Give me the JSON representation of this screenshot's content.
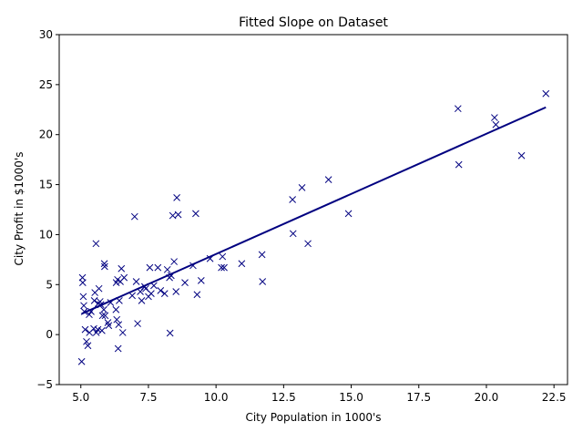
{
  "chart_data": {
    "type": "scatter",
    "title": "Fitted Slope on Dataset",
    "xlabel": "City Population in 1000's",
    "ylabel": "City Profit in $1000's",
    "xlim": [
      4.2,
      23.0
    ],
    "ylim": [
      -5,
      30
    ],
    "xticks": [
      "5.0",
      "7.5",
      "10.0",
      "12.5",
      "15.0",
      "17.5",
      "20.0",
      "22.5"
    ],
    "xtick_values": [
      5.0,
      7.5,
      10.0,
      12.5,
      15.0,
      17.5,
      20.0,
      22.5
    ],
    "yticks": [
      "−5",
      "0",
      "5",
      "10",
      "15",
      "20",
      "25",
      "30"
    ],
    "ytick_values": [
      -5,
      0,
      5,
      10,
      15,
      20,
      25,
      30
    ],
    "grid": false,
    "legend": "none",
    "colors": {
      "points": "#000080",
      "fit_line": "#000080"
    },
    "series": [
      {
        "kind": "points",
        "marker": "x",
        "points": [
          [
            5.03,
            -2.7
          ],
          [
            5.06,
            5.7
          ],
          [
            5.07,
            5.2
          ],
          [
            5.09,
            3.8
          ],
          [
            5.11,
            2.9
          ],
          [
            5.13,
            2.3
          ],
          [
            5.16,
            0.5
          ],
          [
            5.21,
            -0.7
          ],
          [
            5.26,
            -1.1
          ],
          [
            5.31,
            2.0
          ],
          [
            5.32,
            0.2
          ],
          [
            5.38,
            2.3
          ],
          [
            5.48,
            0.6
          ],
          [
            5.5,
            3.4
          ],
          [
            5.52,
            4.2
          ],
          [
            5.56,
            9.1
          ],
          [
            5.57,
            0.2
          ],
          [
            5.63,
            0.5
          ],
          [
            5.64,
            3.1
          ],
          [
            5.67,
            4.6
          ],
          [
            5.71,
            3.3
          ],
          [
            5.74,
            3.0
          ],
          [
            5.78,
            0.4
          ],
          [
            5.8,
            1.9
          ],
          [
            5.85,
            2.5
          ],
          [
            5.87,
            7.1
          ],
          [
            5.88,
            6.8
          ],
          [
            5.9,
            1.9
          ],
          [
            6.0,
            1.2
          ],
          [
            6.03,
            0.9
          ],
          [
            6.1,
            3.2
          ],
          [
            6.3,
            2.5
          ],
          [
            6.31,
            5.2
          ],
          [
            6.33,
            1.5
          ],
          [
            6.36,
            5.5
          ],
          [
            6.38,
            -1.4
          ],
          [
            6.4,
            1.0
          ],
          [
            6.42,
            3.4
          ],
          [
            6.46,
            5.3
          ],
          [
            6.5,
            6.6
          ],
          [
            6.55,
            0.2
          ],
          [
            6.6,
            5.7
          ],
          [
            6.9,
            3.9
          ],
          [
            6.99,
            11.8
          ],
          [
            7.05,
            5.3
          ],
          [
            7.1,
            1.1
          ],
          [
            7.2,
            4.3
          ],
          [
            7.25,
            3.4
          ],
          [
            7.36,
            4.8
          ],
          [
            7.4,
            4.6
          ],
          [
            7.5,
            3.8
          ],
          [
            7.55,
            6.7
          ],
          [
            7.6,
            4.1
          ],
          [
            7.7,
            4.9
          ],
          [
            7.85,
            6.7
          ],
          [
            7.95,
            4.4
          ],
          [
            8.1,
            4.1
          ],
          [
            8.2,
            6.5
          ],
          [
            8.28,
            5.7
          ],
          [
            8.3,
            0.15
          ],
          [
            8.34,
            5.9
          ],
          [
            8.4,
            11.9
          ],
          [
            8.45,
            7.3
          ],
          [
            8.52,
            4.3
          ],
          [
            8.55,
            13.7
          ],
          [
            8.6,
            12.0
          ],
          [
            8.85,
            5.2
          ],
          [
            9.15,
            6.9
          ],
          [
            9.25,
            12.1
          ],
          [
            9.3,
            4.0
          ],
          [
            9.45,
            5.4
          ],
          [
            9.78,
            7.6
          ],
          [
            10.2,
            6.7
          ],
          [
            10.24,
            7.8
          ],
          [
            10.3,
            6.7
          ],
          [
            10.95,
            7.1
          ],
          [
            11.7,
            8.0
          ],
          [
            11.72,
            5.3
          ],
          [
            12.83,
            13.5
          ],
          [
            12.85,
            10.1
          ],
          [
            13.18,
            14.7
          ],
          [
            13.4,
            9.1
          ],
          [
            14.16,
            15.5
          ],
          [
            14.9,
            12.1
          ],
          [
            18.95,
            22.6
          ],
          [
            18.98,
            17.0
          ],
          [
            20.3,
            21.7
          ],
          [
            20.35,
            21.0
          ],
          [
            21.3,
            17.9
          ],
          [
            22.2,
            24.1
          ]
        ]
      },
      {
        "kind": "fit_line",
        "points": [
          [
            5.03,
            2.08
          ],
          [
            22.2,
            22.73
          ]
        ]
      }
    ]
  }
}
